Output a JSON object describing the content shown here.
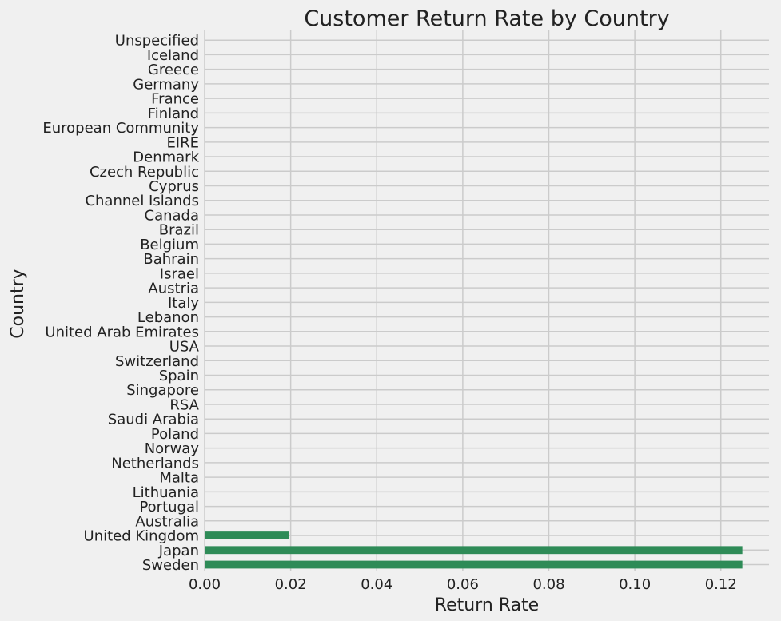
{
  "chart_data": {
    "type": "bar",
    "orientation": "horizontal",
    "title": "Customer Return Rate by Country",
    "xlabel": "Return Rate",
    "ylabel": "Country",
    "xlim": [
      0,
      0.1312
    ],
    "xticks": [
      "0.00",
      "0.02",
      "0.04",
      "0.06",
      "0.08",
      "0.10",
      "0.12"
    ],
    "grid": true,
    "bar_color": "#2e8b57",
    "background_color": "#f0f0f0",
    "grid_color": "#cbcbcb",
    "categories": [
      "Sweden",
      "Japan",
      "United Kingdom",
      "Australia",
      "Portugal",
      "Lithuania",
      "Malta",
      "Netherlands",
      "Norway",
      "Poland",
      "Saudi Arabia",
      "RSA",
      "Singapore",
      "Spain",
      "Switzerland",
      "USA",
      "United Arab Emirates",
      "Lebanon",
      "Italy",
      "Austria",
      "Israel",
      "Bahrain",
      "Belgium",
      "Brazil",
      "Canada",
      "Channel Islands",
      "Cyprus",
      "Czech Republic",
      "Denmark",
      "EIRE",
      "European Community",
      "Finland",
      "France",
      "Germany",
      "Greece",
      "Iceland",
      "Unspecified"
    ],
    "values": [
      0.125,
      0.125,
      0.0197,
      0,
      0,
      0,
      0,
      0,
      0,
      0,
      0,
      0,
      0,
      0,
      0,
      0,
      0,
      0,
      0,
      0,
      0,
      0,
      0,
      0,
      0,
      0,
      0,
      0,
      0,
      0,
      0,
      0,
      0,
      0,
      0,
      0,
      0
    ]
  }
}
